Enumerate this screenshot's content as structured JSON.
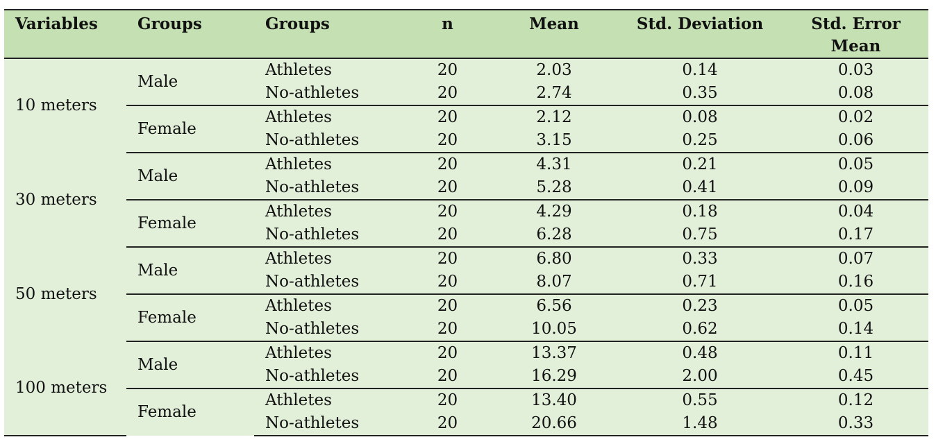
{
  "headers": {
    "variables": "Variables",
    "groups1": "Groups",
    "groups2": "Groups",
    "n": "n",
    "mean": "Mean",
    "std_dev": "Std. Deviation",
    "std_err": "Std. Error Mean"
  },
  "blocks": [
    {
      "variable": "10 meters",
      "sexes": [
        {
          "sex": "Male",
          "rows": [
            {
              "group": "Athletes",
              "n": "20",
              "mean": "2.03",
              "sd": "0.14",
              "se": "0.03"
            },
            {
              "group": "No-athletes",
              "n": "20",
              "mean": "2.74",
              "sd": "0.35",
              "se": "0.08"
            }
          ]
        },
        {
          "sex": "Female",
          "rows": [
            {
              "group": "Athletes",
              "n": "20",
              "mean": "2.12",
              "sd": "0.08",
              "se": "0.02"
            },
            {
              "group": "No-athletes",
              "n": "20",
              "mean": "3.15",
              "sd": "0.25",
              "se": "0.06"
            }
          ]
        }
      ]
    },
    {
      "variable": "30 meters",
      "sexes": [
        {
          "sex": "Male",
          "rows": [
            {
              "group": "Athletes",
              "n": "20",
              "mean": "4.31",
              "sd": "0.21",
              "se": "0.05"
            },
            {
              "group": "No-athletes",
              "n": "20",
              "mean": "5.28",
              "sd": "0.41",
              "se": "0.09"
            }
          ]
        },
        {
          "sex": "Female",
          "rows": [
            {
              "group": "Athletes",
              "n": "20",
              "mean": "4.29",
              "sd": "0.18",
              "se": "0.04"
            },
            {
              "group": "No-athletes",
              "n": "20",
              "mean": "6.28",
              "sd": "0.75",
              "se": "0.17"
            }
          ]
        }
      ]
    },
    {
      "variable": "50 meters",
      "sexes": [
        {
          "sex": "Male",
          "rows": [
            {
              "group": "Athletes",
              "n": "20",
              "mean": "6.80",
              "sd": "0.33",
              "se": "0.07"
            },
            {
              "group": "No-athletes",
              "n": "20",
              "mean": "8.07",
              "sd": "0.71",
              "se": "0.16"
            }
          ]
        },
        {
          "sex": "Female",
          "rows": [
            {
              "group": "Athletes",
              "n": "20",
              "mean": "6.56",
              "sd": "0.23",
              "se": "0.05"
            },
            {
              "group": "No-athletes",
              "n": "20",
              "mean": "10.05",
              "sd": "0.62",
              "se": "0.14"
            }
          ]
        }
      ]
    },
    {
      "variable": "100 meters",
      "sexes": [
        {
          "sex": "Male",
          "rows": [
            {
              "group": "Athletes",
              "n": "20",
              "mean": "13.37",
              "sd": "0.48",
              "se": "0.11"
            },
            {
              "group": "No-athletes",
              "n": "20",
              "mean": "16.29",
              "sd": "2.00",
              "se": "0.45"
            }
          ]
        },
        {
          "sex": "Female",
          "rows": [
            {
              "group": "Athletes",
              "n": "20",
              "mean": "13.40",
              "sd": "0.55",
              "se": "0.12"
            },
            {
              "group": "No-athletes",
              "n": "20",
              "mean": "20.66",
              "sd": "1.48",
              "se": "0.33"
            }
          ]
        }
      ]
    }
  ],
  "colors": {
    "header_bg": "#c5e0b3",
    "body_bg": "#e2efd9",
    "rule": "#222222"
  }
}
